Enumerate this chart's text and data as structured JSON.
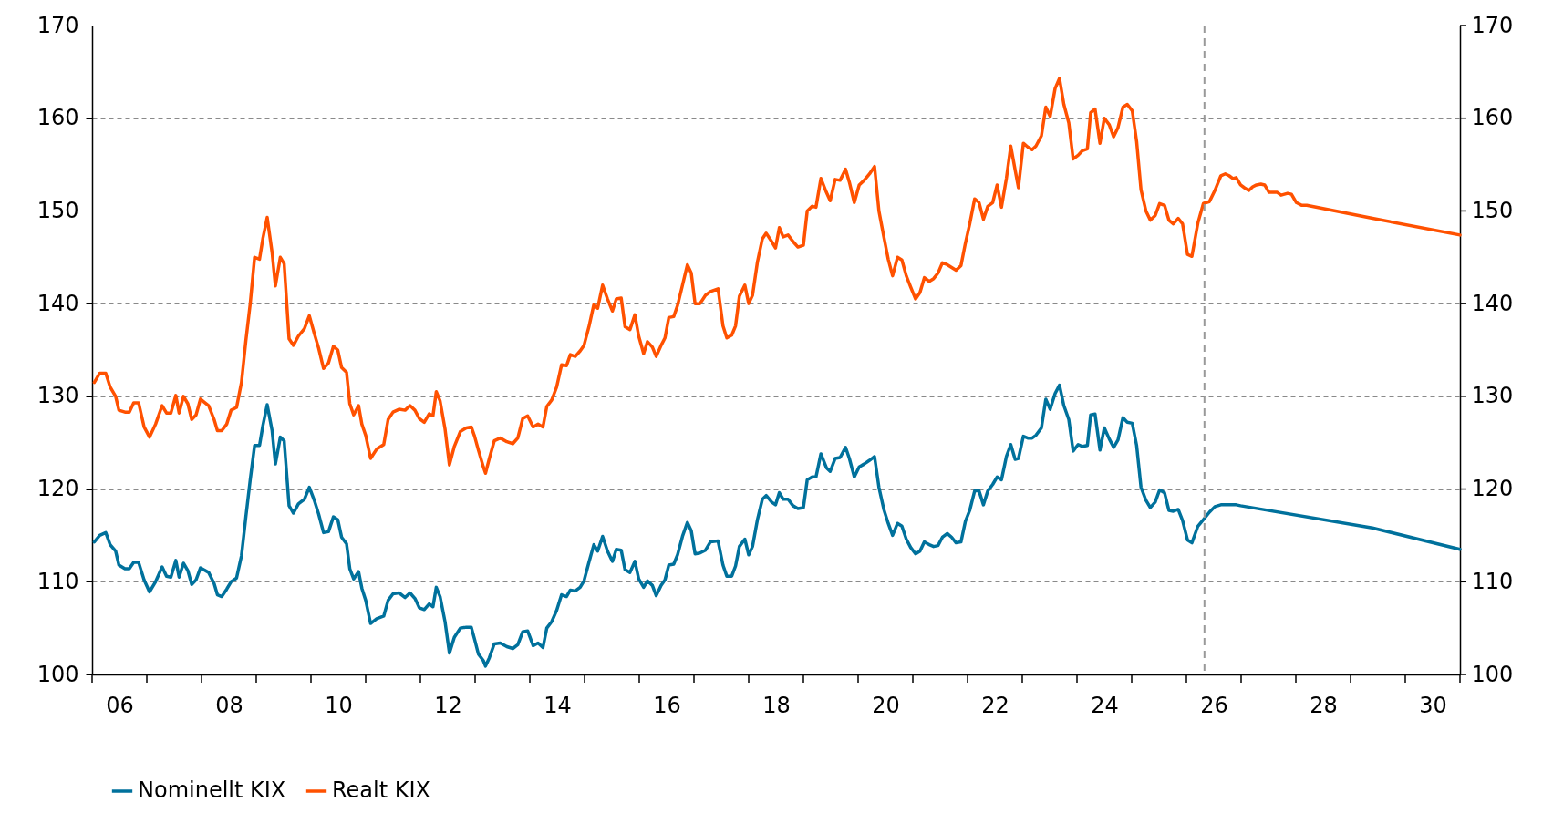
{
  "chart_data": {
    "type": "line",
    "xlim": [
      2005.5,
      2030.5
    ],
    "ylim": [
      100,
      170
    ],
    "y2lim": [
      100,
      170
    ],
    "xticks": [
      {
        "value": 2005.5,
        "label": null
      },
      {
        "value": 2006.5,
        "label": null
      },
      {
        "value": 2007.5,
        "label": null
      },
      {
        "value": 2008.5,
        "label": null
      },
      {
        "value": 2009.5,
        "label": null
      },
      {
        "value": 2010.5,
        "label": null
      },
      {
        "value": 2011.5,
        "label": null
      },
      {
        "value": 2012.5,
        "label": null
      },
      {
        "value": 2013.5,
        "label": null
      },
      {
        "value": 2014.5,
        "label": null
      },
      {
        "value": 2015.5,
        "label": null
      },
      {
        "value": 2016.5,
        "label": null
      },
      {
        "value": 2017.5,
        "label": null
      },
      {
        "value": 2018.5,
        "label": null
      },
      {
        "value": 2019.5,
        "label": null
      },
      {
        "value": 2020.5,
        "label": null
      },
      {
        "value": 2021.5,
        "label": null
      },
      {
        "value": 2022.5,
        "label": null
      },
      {
        "value": 2023.5,
        "label": null
      },
      {
        "value": 2024.5,
        "label": null
      },
      {
        "value": 2025.5,
        "label": null
      },
      {
        "value": 2026.5,
        "label": null
      },
      {
        "value": 2027.5,
        "label": null
      },
      {
        "value": 2028.5,
        "label": null
      },
      {
        "value": 2029.5,
        "label": null
      },
      {
        "value": 2030.5,
        "label": null
      },
      {
        "value": 2006,
        "label": "06"
      },
      {
        "value": 2008,
        "label": "08"
      },
      {
        "value": 2010,
        "label": "10"
      },
      {
        "value": 2012,
        "label": "12"
      },
      {
        "value": 2014,
        "label": "14"
      },
      {
        "value": 2016,
        "label": "16"
      },
      {
        "value": 2018,
        "label": "18"
      },
      {
        "value": 2020,
        "label": "20"
      },
      {
        "value": 2022,
        "label": "22"
      },
      {
        "value": 2024,
        "label": "24"
      },
      {
        "value": 2026,
        "label": "26"
      },
      {
        "value": 2028,
        "label": "28"
      },
      {
        "value": 2030,
        "label": "30"
      }
    ],
    "yticks": [
      100,
      110,
      120,
      130,
      140,
      150,
      160,
      170
    ],
    "y2ticks": [
      100,
      110,
      120,
      130,
      140,
      150,
      160,
      170
    ],
    "grid": "y",
    "legend": "bottom left",
    "ref_lines": [
      {
        "axis": "x",
        "value": 2025.83,
        "color": "#999999",
        "line_style": "dashed"
      }
    ],
    "series": [
      {
        "name": "Nominellt KIX",
        "color": "#00719c",
        "x": [
          2005.54,
          2005.64,
          2005.75,
          2005.83,
          2005.93,
          2005.99,
          2006.1,
          2006.18,
          2006.26,
          2006.35,
          2006.45,
          2006.55,
          2006.66,
          2006.78,
          2006.86,
          2006.94,
          2007.03,
          2007.09,
          2007.17,
          2007.25,
          2007.32,
          2007.4,
          2007.48,
          2007.63,
          2007.73,
          2007.79,
          2007.87,
          2007.96,
          2008.04,
          2008.14,
          2008.23,
          2008.31,
          2008.39,
          2008.47,
          2008.56,
          2008.62,
          2008.7,
          2008.79,
          2008.85,
          2008.94,
          2009.01,
          2009.1,
          2009.18,
          2009.27,
          2009.38,
          2009.47,
          2009.56,
          2009.64,
          2009.73,
          2009.82,
          2009.91,
          2009.99,
          2010.06,
          2010.15,
          2010.21,
          2010.28,
          2010.37,
          2010.43,
          2010.5,
          2010.59,
          2010.7,
          2010.83,
          2010.91,
          2011.0,
          2011.11,
          2011.22,
          2011.31,
          2011.4,
          2011.48,
          2011.57,
          2011.66,
          2011.73,
          2011.79,
          2011.86,
          2011.95,
          2012.03,
          2012.12,
          2012.23,
          2012.34,
          2012.43,
          2012.49,
          2012.56,
          2012.65,
          2012.69,
          2012.76,
          2012.85,
          2012.96,
          2013.08,
          2013.19,
          2013.28,
          2013.37,
          2013.46,
          2013.56,
          2013.65,
          2013.74,
          2013.81,
          2013.9,
          2013.99,
          2014.08,
          2014.17,
          2014.24,
          2014.33,
          2014.42,
          2014.49,
          2014.58,
          2014.67,
          2014.74,
          2014.83,
          2014.92,
          2015.01,
          2015.08,
          2015.17,
          2015.24,
          2015.33,
          2015.42,
          2015.49,
          2015.58,
          2015.65,
          2015.74,
          2015.81,
          2015.9,
          2015.97,
          2016.04,
          2016.13,
          2016.2,
          2016.29,
          2016.38,
          2016.45,
          2016.52,
          2016.61,
          2016.71,
          2016.8,
          2016.94,
          2017.03,
          2017.1,
          2017.19,
          2017.26,
          2017.33,
          2017.43,
          2017.5,
          2017.57,
          2017.66,
          2017.75,
          2017.82,
          2017.92,
          2017.99,
          2018.06,
          2018.13,
          2018.22,
          2018.31,
          2018.4,
          2018.5,
          2018.57,
          2018.66,
          2018.73,
          2018.82,
          2018.92,
          2018.99,
          2019.08,
          2019.17,
          2019.27,
          2019.34,
          2019.43,
          2019.52,
          2019.61,
          2019.71,
          2019.8,
          2019.88,
          2019.97,
          2020.05,
          2020.13,
          2020.22,
          2020.3,
          2020.38,
          2020.46,
          2020.55,
          2020.63,
          2020.71,
          2020.8,
          2020.88,
          2020.96,
          2021.04,
          2021.13,
          2021.21,
          2021.29,
          2021.38,
          2021.46,
          2021.54,
          2021.63,
          2021.71,
          2021.79,
          2021.87,
          2021.96,
          2022.04,
          2022.12,
          2022.21,
          2022.29,
          2022.37,
          2022.43,
          2022.52,
          2022.6,
          2022.68,
          2022.75,
          2022.85,
          2022.93,
          2023.01,
          2023.1,
          2023.18,
          2023.26,
          2023.35,
          2023.43,
          2023.52,
          2023.6,
          2023.69,
          2023.75,
          2023.83,
          2023.92,
          2024.0,
          2024.09,
          2024.17,
          2024.25,
          2024.34,
          2024.42,
          2024.51,
          2024.59,
          2024.67,
          2024.76,
          2024.84,
          2024.93,
          2025.01,
          2025.1,
          2025.18,
          2025.26,
          2025.35,
          2025.43,
          2025.52,
          2025.6,
          2025.71,
          2025.81,
          2025.92,
          2026.02,
          2026.13,
          2026.21,
          2026.28,
          2026.35,
          2026.41,
          2026.49,
          2028.9,
          2030.5
        ],
        "values": [
          114.3,
          115,
          115.3,
          114,
          113.3,
          111.8,
          111.4,
          111.4,
          112.1,
          112.1,
          110.2,
          108.9,
          110,
          111.6,
          110.6,
          110.5,
          112.3,
          110.5,
          112,
          111.2,
          109.7,
          110.2,
          111.5,
          111,
          109.8,
          108.6,
          108.4,
          109.2,
          110,
          110.4,
          112.8,
          117,
          121,
          124.7,
          124.7,
          126.8,
          129.1,
          126.3,
          122.7,
          125.6,
          125.2,
          118.2,
          117.4,
          118.4,
          118.9,
          120.2,
          118.8,
          117.3,
          115.3,
          115.4,
          117,
          116.7,
          114.8,
          114.1,
          111.4,
          110.3,
          111.1,
          109.3,
          108,
          105.5,
          106,
          106.3,
          108,
          108.7,
          108.8,
          108.3,
          108.8,
          108.2,
          107.2,
          107,
          107.6,
          107.3,
          109.4,
          108.4,
          105.7,
          102.3,
          104,
          105,
          105.1,
          105.1,
          103.8,
          102.2,
          101.5,
          100.9,
          101.8,
          103.3,
          103.4,
          103,
          102.8,
          103.2,
          104.6,
          104.7,
          103.1,
          103.4,
          102.9,
          105,
          105.7,
          106.9,
          108.6,
          108.4,
          109.1,
          109,
          109.4,
          110.1,
          112.1,
          114,
          113.3,
          114.9,
          113.3,
          112.2,
          113.5,
          113.4,
          111.3,
          111,
          112.2,
          110.3,
          109.4,
          110.1,
          109.6,
          108.5,
          109.6,
          110.2,
          111.8,
          111.9,
          112.9,
          114.9,
          116.4,
          115.5,
          113,
          113.1,
          113.4,
          114.3,
          114.4,
          111.8,
          110.6,
          110.6,
          111.7,
          113.8,
          114.6,
          112.9,
          113.8,
          116.7,
          118.9,
          119.3,
          118.6,
          118.3,
          119.6,
          118.9,
          118.9,
          118.2,
          117.9,
          118,
          121,
          121.3,
          121.3,
          123.8,
          122.3,
          121.9,
          123.3,
          123.4,
          124.5,
          123.3,
          121.3,
          122.4,
          122.7,
          123.1,
          123.5,
          120.2,
          117.8,
          116.3,
          115,
          116.3,
          116,
          114.6,
          113.7,
          113,
          113.3,
          114.3,
          114,
          113.8,
          113.9,
          114.8,
          115.2,
          114.8,
          114.2,
          114.3,
          116.5,
          117.7,
          119.8,
          119.8,
          118.3,
          119.8,
          120.5,
          121.3,
          121,
          123.5,
          124.8,
          123.2,
          123.3,
          125.7,
          125.5,
          125.5,
          125.8,
          126.6,
          129.7,
          128.6,
          130.3,
          131.2,
          129,
          127.5,
          124.1,
          124.8,
          124.6,
          124.7,
          128,
          128.1,
          124.2,
          126.6,
          125.4,
          124.5,
          125.3,
          127.7,
          127.2,
          127.1,
          124.7,
          120.2,
          118.8,
          118,
          118.6,
          119.9,
          119.6,
          117.7,
          117.6,
          117.8,
          116.6,
          114.5,
          114.2,
          116,
          116.7,
          117.5,
          118.1,
          118.3,
          118.3,
          118.3,
          118.3,
          118.3,
          118.2,
          115.8,
          113.5
        ]
      },
      {
        "name": "Realt KIX",
        "color": "#ff5100",
        "x": [
          2005.54,
          2005.64,
          2005.75,
          2005.83,
          2005.93,
          2005.99,
          2006.1,
          2006.18,
          2006.26,
          2006.35,
          2006.45,
          2006.55,
          2006.66,
          2006.78,
          2006.86,
          2006.94,
          2007.03,
          2007.09,
          2007.17,
          2007.25,
          2007.32,
          2007.4,
          2007.48,
          2007.63,
          2007.73,
          2007.79,
          2007.87,
          2007.96,
          2008.04,
          2008.14,
          2008.23,
          2008.31,
          2008.39,
          2008.47,
          2008.56,
          2008.62,
          2008.7,
          2008.79,
          2008.85,
          2008.94,
          2009.01,
          2009.1,
          2009.18,
          2009.27,
          2009.38,
          2009.47,
          2009.56,
          2009.64,
          2009.73,
          2009.82,
          2009.91,
          2009.99,
          2010.06,
          2010.15,
          2010.21,
          2010.28,
          2010.37,
          2010.43,
          2010.5,
          2010.59,
          2010.7,
          2010.83,
          2010.91,
          2011.0,
          2011.11,
          2011.22,
          2011.31,
          2011.4,
          2011.48,
          2011.57,
          2011.66,
          2011.73,
          2011.79,
          2011.86,
          2011.95,
          2012.03,
          2012.12,
          2012.23,
          2012.34,
          2012.43,
          2012.49,
          2012.56,
          2012.65,
          2012.69,
          2012.76,
          2012.85,
          2012.96,
          2013.08,
          2013.19,
          2013.28,
          2013.37,
          2013.46,
          2013.56,
          2013.65,
          2013.74,
          2013.81,
          2013.9,
          2013.99,
          2014.08,
          2014.17,
          2014.24,
          2014.33,
          2014.42,
          2014.49,
          2014.58,
          2014.67,
          2014.74,
          2014.83,
          2014.92,
          2015.01,
          2015.08,
          2015.17,
          2015.24,
          2015.33,
          2015.42,
          2015.49,
          2015.58,
          2015.65,
          2015.74,
          2015.81,
          2015.9,
          2015.97,
          2016.04,
          2016.13,
          2016.2,
          2016.29,
          2016.38,
          2016.45,
          2016.52,
          2016.61,
          2016.71,
          2016.8,
          2016.94,
          2017.03,
          2017.1,
          2017.19,
          2017.26,
          2017.33,
          2017.43,
          2017.5,
          2017.57,
          2017.66,
          2017.75,
          2017.82,
          2017.92,
          2017.99,
          2018.06,
          2018.13,
          2018.22,
          2018.31,
          2018.4,
          2018.5,
          2018.57,
          2018.66,
          2018.73,
          2018.82,
          2018.92,
          2018.99,
          2019.08,
          2019.17,
          2019.27,
          2019.34,
          2019.43,
          2019.52,
          2019.61,
          2019.71,
          2019.8,
          2019.88,
          2019.97,
          2020.05,
          2020.13,
          2020.22,
          2020.3,
          2020.38,
          2020.46,
          2020.55,
          2020.63,
          2020.71,
          2020.8,
          2020.88,
          2020.96,
          2021.04,
          2021.13,
          2021.21,
          2021.29,
          2021.38,
          2021.46,
          2021.54,
          2021.63,
          2021.71,
          2021.79,
          2021.87,
          2021.96,
          2022.04,
          2022.12,
          2022.21,
          2022.29,
          2022.37,
          2022.43,
          2022.52,
          2022.6,
          2022.68,
          2022.75,
          2022.85,
          2022.93,
          2023.01,
          2023.1,
          2023.18,
          2023.26,
          2023.35,
          2023.43,
          2023.52,
          2023.6,
          2023.69,
          2023.75,
          2023.83,
          2023.92,
          2024.0,
          2024.09,
          2024.17,
          2024.25,
          2024.34,
          2024.42,
          2024.51,
          2024.59,
          2024.67,
          2024.76,
          2024.84,
          2024.93,
          2025.01,
          2025.1,
          2025.18,
          2025.26,
          2025.35,
          2025.43,
          2025.52,
          2025.6,
          2025.71,
          2025.81,
          2025.92,
          2026.02,
          2026.13,
          2026.21,
          2026.28,
          2026.35,
          2026.41,
          2026.49,
          2026.56,
          2026.64,
          2026.71,
          2026.78,
          2026.86,
          2026.93,
          2027.01,
          2027.16,
          2027.23,
          2027.35,
          2027.42,
          2027.51,
          2027.61,
          2027.7,
          2028.9,
          2030.5
        ],
        "values": [
          131.5,
          132.5,
          132.5,
          131,
          130,
          128.5,
          128.3,
          128.3,
          129.3,
          129.3,
          126.7,
          125.6,
          127,
          129,
          128.2,
          128.2,
          130.1,
          128.2,
          130,
          129.2,
          127.5,
          128,
          129.7,
          129,
          127.5,
          126.3,
          126.3,
          127,
          128.5,
          128.8,
          131.5,
          136,
          140,
          145,
          144.8,
          147,
          149.3,
          145.5,
          141.9,
          145,
          144.3,
          136.2,
          135.5,
          136.5,
          137.3,
          138.7,
          136.8,
          135.2,
          133,
          133.6,
          135.4,
          135,
          133.1,
          132.6,
          129.2,
          128,
          129,
          127,
          125.8,
          123.3,
          124.3,
          124.8,
          127.5,
          128.3,
          128.6,
          128.5,
          129,
          128.5,
          127.6,
          127.2,
          128.1,
          127.9,
          130.5,
          129.5,
          126.5,
          122.6,
          124.6,
          126.2,
          126.6,
          126.7,
          125.7,
          124.2,
          122.4,
          121.7,
          123.3,
          125.2,
          125.5,
          125.1,
          124.9,
          125.5,
          127.6,
          127.9,
          126.7,
          127.0,
          126.7,
          128.9,
          129.6,
          131.0,
          133.4,
          133.3,
          134.5,
          134.3,
          134.9,
          135.5,
          137.5,
          139.9,
          139.5,
          142.0,
          140.5,
          139.2,
          140.5,
          140.6,
          137.5,
          137.2,
          138.8,
          136.5,
          134.6,
          135.9,
          135.3,
          134.3,
          135.5,
          136.3,
          138.5,
          138.6,
          139.8,
          142.0,
          144.2,
          143.3,
          140.0,
          140.0,
          140.9,
          141.3,
          141.6,
          137.6,
          136.3,
          136.6,
          137.6,
          140.8,
          142.0,
          140.0,
          140.9,
          144.5,
          147.0,
          147.6,
          146.7,
          146.0,
          148.2,
          147.2,
          147.4,
          146.7,
          146.1,
          146.3,
          150.0,
          150.5,
          150.4,
          153.5,
          152.0,
          151.1,
          153.4,
          153.3,
          154.5,
          153.1,
          150.9,
          152.8,
          153.3,
          154.0,
          154.8,
          150.0,
          147.2,
          144.8,
          143.0,
          145.0,
          144.7,
          143.0,
          141.8,
          140.5,
          141.2,
          142.8,
          142.4,
          142.7,
          143.3,
          144.4,
          144.2,
          143.9,
          143.6,
          144.1,
          146.5,
          148.6,
          151.3,
          150.9,
          149.1,
          150.5,
          150.9,
          152.8,
          150.4,
          153.5,
          157.0,
          154.4,
          152.5,
          157.3,
          156.9,
          156.6,
          157.0,
          158.1,
          161.2,
          160.2,
          163.2,
          164.3,
          161.5,
          159.5,
          155.6,
          156.0,
          156.5,
          156.7,
          160.6,
          161.0,
          157.3,
          160.0,
          159.3,
          158.0,
          159.0,
          161.2,
          161.5,
          160.8,
          157.5,
          152.3,
          150.0,
          149.0,
          149.5,
          150.8,
          150.6,
          149.0,
          148.6,
          149.2,
          148.6,
          145.3,
          145.1,
          148.7,
          150.8,
          151.0,
          152.2,
          153.8,
          154.0,
          153.8,
          153.5,
          153.6,
          152.8,
          152.5,
          152.2,
          152.6,
          152.8,
          152.9,
          152.8,
          152.0,
          152.0,
          151.7,
          151.9,
          151.8,
          150.9,
          150.6,
          150.6,
          149.2,
          147.4
        ]
      }
    ]
  }
}
